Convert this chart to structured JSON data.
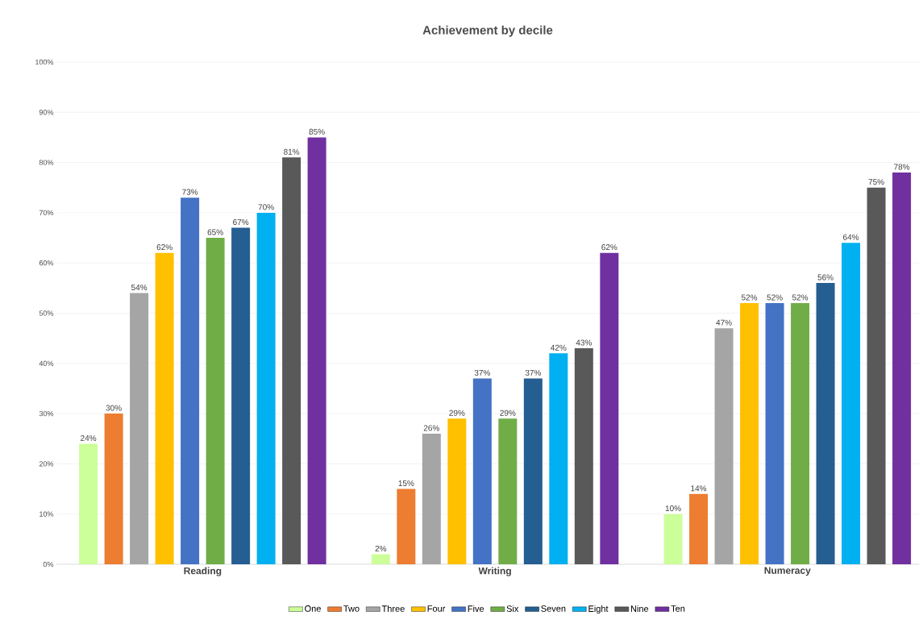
{
  "chart_data": {
    "type": "bar",
    "title": "Achievement by decile",
    "categories": [
      "Reading",
      "Writing",
      "Numeracy"
    ],
    "series": [
      {
        "name": "One",
        "color": "#ccff99",
        "values": [
          24,
          2,
          10
        ],
        "value_labels": [
          "24%",
          "2%",
          "10%"
        ]
      },
      {
        "name": "Two",
        "color": "#ed7d31",
        "values": [
          30,
          15,
          14
        ],
        "value_labels": [
          "30%",
          "15%",
          "14%"
        ]
      },
      {
        "name": "Three",
        "color": "#a5a5a5",
        "values": [
          54,
          26,
          47
        ],
        "value_labels": [
          "54%",
          "26%",
          "47%"
        ]
      },
      {
        "name": "Four",
        "color": "#ffc000",
        "values": [
          62,
          29,
          52
        ],
        "value_labels": [
          "62%",
          "29%",
          "52%"
        ]
      },
      {
        "name": "Five",
        "color": "#4472c4",
        "values": [
          73,
          37,
          52
        ],
        "value_labels": [
          "73%",
          "37%",
          "52%"
        ]
      },
      {
        "name": "Six",
        "color": "#70ad47",
        "values": [
          65,
          29,
          52
        ],
        "value_labels": [
          "65%",
          "29%",
          "52%"
        ]
      },
      {
        "name": "Seven",
        "color": "#255e91",
        "values": [
          67,
          37,
          56
        ],
        "value_labels": [
          "67%",
          "37%",
          "56%"
        ]
      },
      {
        "name": "Eight",
        "color": "#00b0f0",
        "values": [
          70,
          42,
          64
        ],
        "value_labels": [
          "70%",
          "42%",
          "64%"
        ]
      },
      {
        "name": "Nine",
        "color": "#595959",
        "values": [
          81,
          43,
          75
        ],
        "value_labels": [
          "81%",
          "43%",
          "75%"
        ]
      },
      {
        "name": "Ten",
        "color": "#7030a0",
        "values": [
          85,
          62,
          78
        ],
        "value_labels": [
          "85%",
          "62%",
          "78%"
        ]
      }
    ],
    "ylim": [
      0,
      100
    ],
    "yticks": [
      {
        "value": 0,
        "label": "0%"
      },
      {
        "value": 10,
        "label": "10%"
      },
      {
        "value": 20,
        "label": "20%"
      },
      {
        "value": 30,
        "label": "30%"
      },
      {
        "value": 40,
        "label": "40%"
      },
      {
        "value": 50,
        "label": "50%"
      },
      {
        "value": 60,
        "label": "60%"
      },
      {
        "value": 70,
        "label": "70%"
      },
      {
        "value": 80,
        "label": "80%"
      },
      {
        "value": 90,
        "label": "90%"
      },
      {
        "value": 100,
        "label": "100%"
      }
    ],
    "grid": "y",
    "legend": "bottom"
  }
}
